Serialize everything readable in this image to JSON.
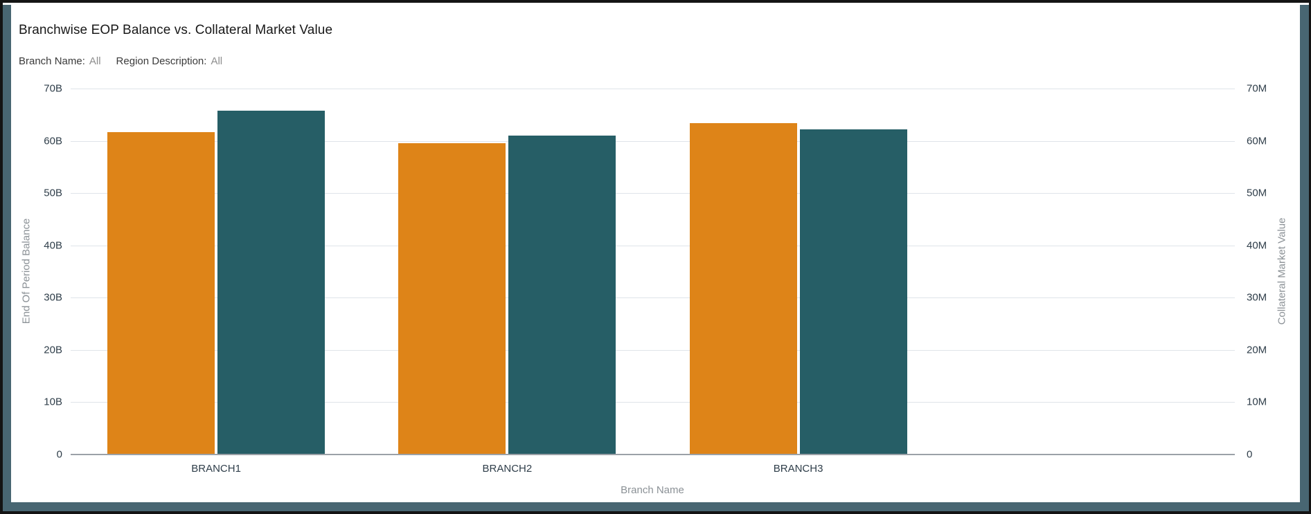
{
  "page": {
    "title": "Branchwise EOP Balance vs. Collateral Market Value",
    "filters": [
      {
        "label": "Branch Name:",
        "value": "All"
      },
      {
        "label": "Region Description:",
        "value": "All"
      }
    ]
  },
  "chart_data": {
    "type": "bar",
    "title": "Branchwise EOP Balance vs. Collateral Market Value",
    "categories": [
      "BRANCH1",
      "BRANCH2",
      "BRANCH3"
    ],
    "series": [
      {
        "name": "End Of Period Balance",
        "axis": "left",
        "unit": "B",
        "color": "#DE8418",
        "values": [
          61.7,
          59.5,
          63.4
        ]
      },
      {
        "name": "Collateral Market Value",
        "axis": "right",
        "unit": "M",
        "color": "#265E66",
        "values": [
          65.8,
          61.0,
          62.2
        ]
      }
    ],
    "xlabel": "Branch Name",
    "ylabel_left": "End Of Period Balance",
    "ylabel_right": "Collateral Market Value",
    "ylim_left": [
      0,
      70
    ],
    "ylim_right": [
      0,
      70
    ],
    "ytick_step": 10,
    "yticks_left": [
      "0",
      "10B",
      "20B",
      "30B",
      "40B",
      "50B",
      "60B",
      "70B"
    ],
    "yticks_right": [
      "0",
      "10M",
      "20M",
      "30M",
      "40M",
      "50M",
      "60M",
      "70M"
    ],
    "grid": true,
    "legend_position": "none"
  },
  "colors": {
    "series_eop_balance": "#DE8418",
    "series_collateral_value": "#265E66",
    "window_strip": "#486672",
    "outer_border": "#141414",
    "gridline": "#dfe4e9",
    "axis_line": "#9ba1a7",
    "tick_text": "#2e3d49",
    "muted_text": "#8b9196",
    "title_text": "#181818"
  }
}
